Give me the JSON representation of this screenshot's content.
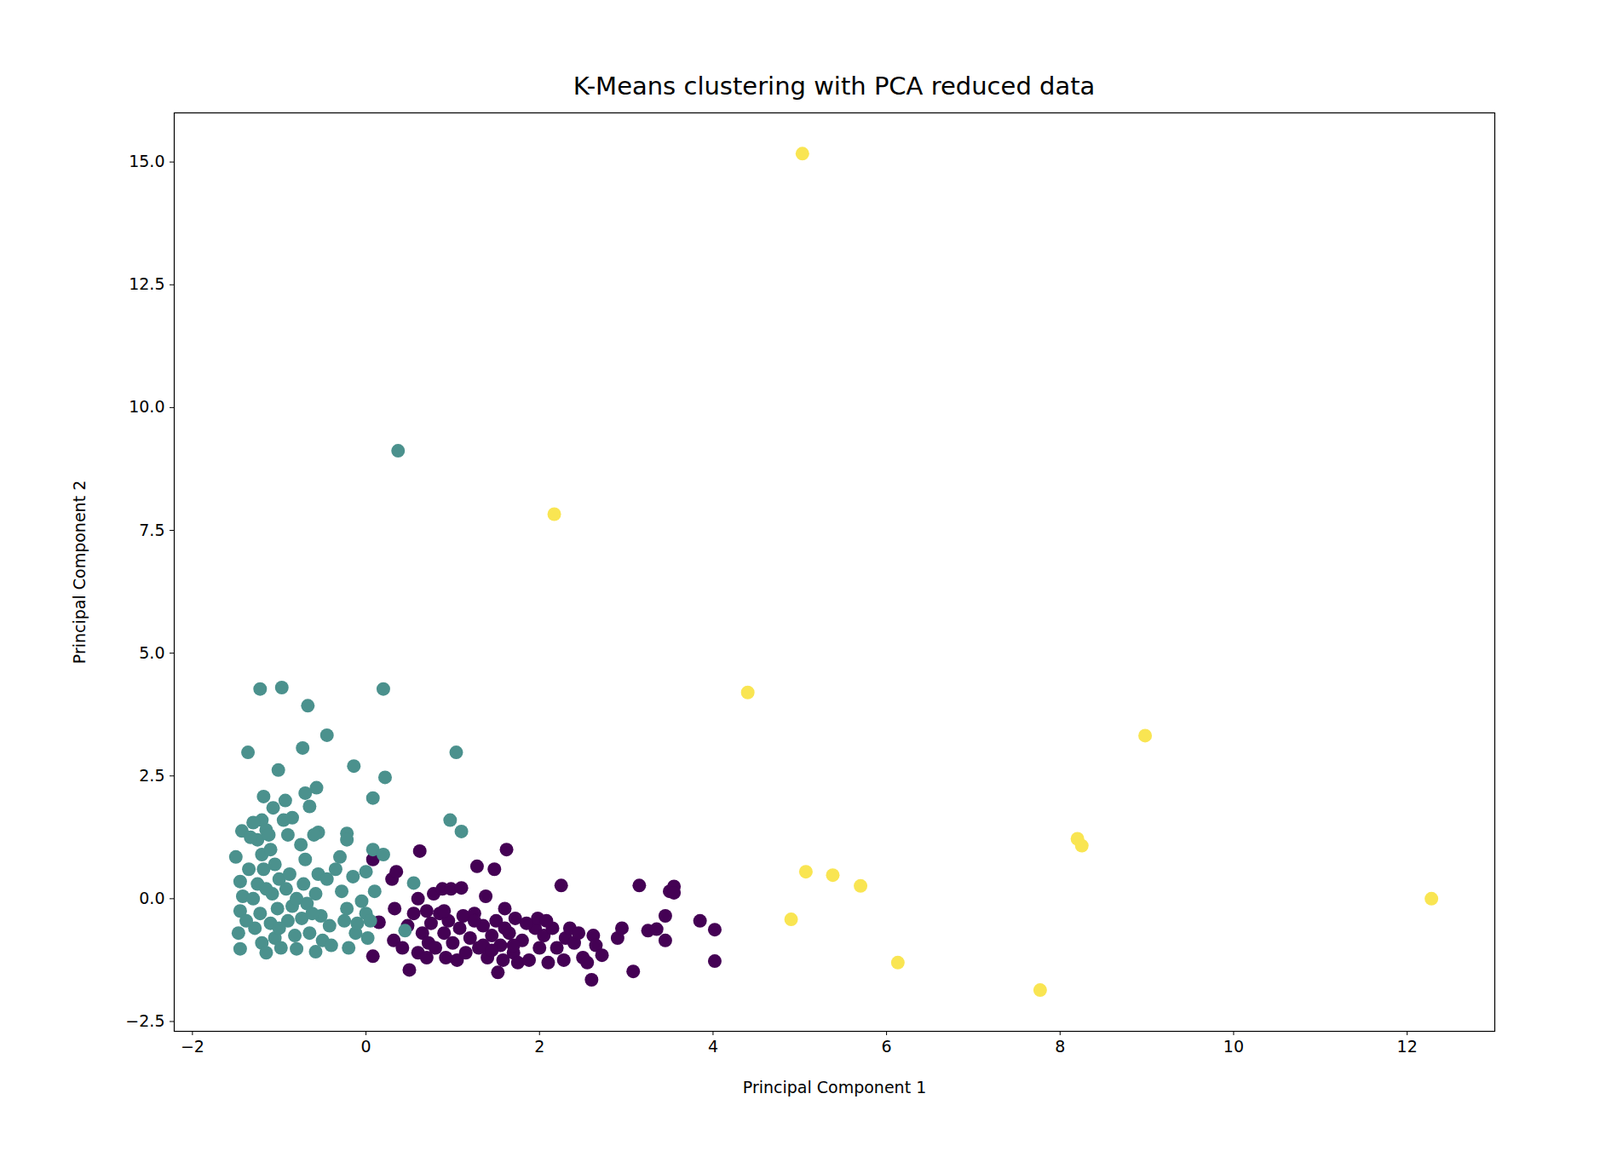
{
  "chart_data": {
    "type": "scatter",
    "title": "K-Means clustering with PCA reduced data",
    "x_label": "Principal Component 1",
    "y_label": "Principal Component 2",
    "xlim": [
      -2.21,
      13.01
    ],
    "ylim": [
      -2.7,
      16.0
    ],
    "xticks": [
      {
        "value": -2,
        "label": "−2"
      },
      0,
      2,
      4,
      6,
      8,
      10,
      12
    ],
    "yticks": [
      {
        "value": -2.5,
        "label": "−2.5"
      },
      {
        "value": 0,
        "label": "0.0"
      },
      {
        "value": 2.5,
        "label": "2.5"
      },
      {
        "value": 5,
        "label": "5.0"
      },
      {
        "value": 7.5,
        "label": "7.5"
      },
      {
        "value": 10,
        "label": "10.0"
      },
      {
        "value": 12.5,
        "label": "12.5"
      },
      {
        "value": 15,
        "label": "15.0"
      }
    ],
    "grid": false,
    "series": [
      {
        "color": "#440154",
        "marker": "circle",
        "x": [
          0.08,
          0.08,
          0.15,
          0.3,
          0.35,
          0.32,
          0.33,
          0.42,
          0.48,
          0.5,
          0.55,
          0.6,
          0.62,
          0.6,
          0.65,
          0.7,
          0.72,
          0.75,
          0.78,
          0.8,
          0.85,
          0.88,
          0.9,
          0.92,
          0.95,
          0.98,
          1.0,
          1.05,
          1.08,
          1.1,
          1.12,
          1.15,
          1.2,
          1.25,
          1.28,
          1.3,
          1.35,
          1.38,
          1.4,
          1.45,
          1.48,
          1.5,
          1.52,
          1.55,
          1.58,
          1.6,
          1.62,
          1.65,
          1.7,
          1.72,
          1.75,
          1.8,
          1.88,
          1.95,
          1.98,
          2.0,
          2.05,
          2.1,
          2.15,
          2.2,
          2.25,
          2.28,
          2.3,
          2.35,
          2.4,
          2.45,
          2.5,
          2.55,
          2.6,
          2.62,
          2.65,
          2.72,
          2.9,
          2.95,
          3.08,
          3.15,
          3.25,
          3.35,
          3.45,
          3.45,
          3.5,
          3.55,
          3.55,
          3.85,
          4.02,
          4.02,
          1.35,
          1.6,
          0.9,
          1.45,
          1.25,
          0.7,
          1.85,
          2.08,
          1.7
        ],
        "y": [
          0.8,
          -1.17,
          -0.48,
          0.4,
          0.55,
          -0.85,
          -0.2,
          -1.0,
          -0.55,
          -1.45,
          -0.3,
          0.0,
          0.97,
          -1.1,
          -0.7,
          -0.25,
          -0.9,
          -0.5,
          0.1,
          -1.0,
          -0.3,
          0.2,
          -0.7,
          -1.2,
          -0.45,
          0.2,
          -0.9,
          -1.25,
          -0.6,
          0.22,
          -0.35,
          -1.1,
          -0.8,
          -0.3,
          0.66,
          -1.0,
          -0.55,
          0.05,
          -1.2,
          -0.75,
          0.6,
          -0.45,
          -1.5,
          -0.95,
          -1.25,
          -0.2,
          1.0,
          -0.7,
          -1.1,
          -0.4,
          -1.3,
          -0.85,
          -1.25,
          -0.6,
          -0.4,
          -1.0,
          -0.75,
          -1.3,
          -0.6,
          -1.0,
          0.27,
          -1.25,
          -0.8,
          -0.6,
          -0.9,
          -0.7,
          -1.2,
          -1.3,
          -1.65,
          -0.75,
          -0.95,
          -1.15,
          -0.8,
          -0.6,
          -1.48,
          0.27,
          -0.65,
          -0.62,
          -0.85,
          -0.35,
          0.15,
          0.25,
          0.12,
          -0.45,
          -0.63,
          -1.27,
          -0.95,
          -0.6,
          -0.25,
          -1.05,
          -0.45,
          -1.2,
          -0.5,
          -0.45,
          -0.95
        ]
      },
      {
        "color": "#4b918d",
        "marker": "circle",
        "x": [
          0.37,
          -1.22,
          -0.97,
          0.2,
          -0.67,
          -0.45,
          -1.36,
          -0.73,
          1.04,
          -1.01,
          -0.14,
          0.22,
          -0.57,
          -1.18,
          -0.7,
          0.08,
          -0.93,
          -1.07,
          -0.65,
          0.97,
          1.1,
          -1.2,
          -1.15,
          -0.85,
          -0.55,
          -0.22,
          -1.43,
          -1.5,
          -1.45,
          -1.42,
          -1.45,
          -1.47,
          -1.45,
          -1.3,
          -1.25,
          -1.2,
          -1.18,
          -1.25,
          -1.3,
          -1.22,
          -1.28,
          -1.2,
          -1.15,
          -1.1,
          -1.05,
          -1.0,
          -1.08,
          -1.02,
          -1.1,
          -1.05,
          -0.98,
          -0.9,
          -0.88,
          -0.92,
          -0.85,
          -0.9,
          -0.82,
          -0.8,
          -0.75,
          -0.7,
          -0.72,
          -0.68,
          -0.74,
          -0.65,
          -0.6,
          -0.55,
          -0.58,
          -0.52,
          -0.58,
          -0.5,
          -0.45,
          -0.42,
          -0.4,
          -0.35,
          -0.3,
          -0.28,
          -0.25,
          -0.22,
          -0.22,
          -0.2,
          -0.15,
          -0.12,
          -0.1,
          -0.05,
          0.0,
          0.0,
          0.02,
          0.05,
          0.08,
          0.1,
          0.2,
          0.55,
          0.45,
          -1.35,
          -1.38,
          -1.12,
          -0.95,
          -1.33,
          -0.8,
          -0.62,
          -1.15,
          -1.0
        ],
        "y": [
          9.12,
          4.27,
          4.3,
          4.27,
          3.93,
          3.33,
          2.98,
          3.07,
          2.98,
          2.62,
          2.7,
          2.47,
          2.26,
          2.08,
          2.15,
          2.05,
          2.0,
          1.85,
          1.88,
          1.6,
          1.37,
          1.6,
          1.4,
          1.65,
          1.35,
          1.33,
          1.38,
          0.85,
          0.35,
          0.05,
          -0.25,
          -0.7,
          -1.02,
          1.55,
          1.2,
          0.9,
          0.6,
          0.3,
          0.0,
          -0.3,
          -0.6,
          -0.9,
          -1.1,
          1.0,
          0.7,
          0.4,
          0.1,
          -0.2,
          -0.5,
          -0.8,
          -1.0,
          1.3,
          0.5,
          0.2,
          -0.15,
          -0.45,
          -0.75,
          -1.02,
          1.1,
          0.8,
          0.3,
          -0.1,
          -0.4,
          -0.7,
          1.3,
          0.5,
          0.1,
          -0.35,
          -1.08,
          -0.85,
          0.4,
          -0.55,
          -0.95,
          0.6,
          0.85,
          0.15,
          -0.45,
          -0.2,
          1.2,
          -1.0,
          0.45,
          -0.7,
          -0.5,
          -0.05,
          0.55,
          -0.3,
          -0.8,
          -0.45,
          1.0,
          0.15,
          0.9,
          0.32,
          -0.65,
          0.6,
          -0.45,
          1.3,
          1.6,
          1.25,
          0.0,
          -0.3,
          0.2,
          -0.6
        ]
      },
      {
        "color": "#f9e552",
        "marker": "circle",
        "x": [
          5.03,
          2.17,
          4.4,
          8.98,
          8.2,
          8.25,
          5.07,
          5.38,
          5.7,
          4.9,
          6.13,
          7.77,
          12.28
        ],
        "y": [
          15.17,
          7.83,
          4.2,
          3.32,
          1.22,
          1.08,
          0.55,
          0.48,
          0.26,
          -0.42,
          -1.3,
          -1.86,
          0.0
        ]
      }
    ]
  }
}
